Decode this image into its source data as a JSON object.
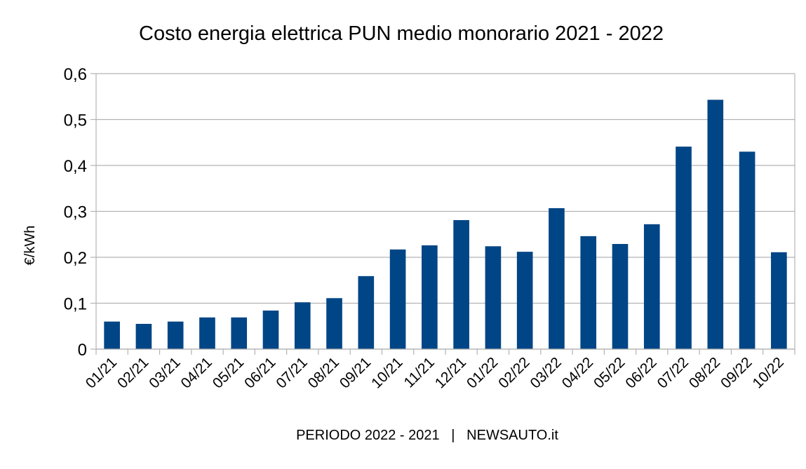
{
  "chart_data": {
    "type": "bar",
    "title": "Costo energia elettrica PUN medio monorario 2021 - 2022",
    "xlabel": "PERIODO 2022 - 2021   |   NEWSAUTO.it",
    "ylabel": "€/kWh",
    "ylim": [
      0,
      0.6
    ],
    "yticks": [
      0,
      0.1,
      0.2,
      0.3,
      0.4,
      0.5,
      0.6
    ],
    "ytick_labels": [
      "0",
      "0,1",
      "0,2",
      "0,3",
      "0,4",
      "0,5",
      "0,6"
    ],
    "grid": true,
    "legend": "none",
    "bar_color": "#004586",
    "categories": [
      "01/21",
      "02/21",
      "03/21",
      "04/21",
      "05/21",
      "06/21",
      "07/21",
      "08/21",
      "09/21",
      "10/21",
      "11/21",
      "12/21",
      "01/22",
      "02/22",
      "03/22",
      "04/22",
      "05/22",
      "06/22",
      "07/22",
      "08/22",
      "09/22",
      "10/22"
    ],
    "values": [
      0.06,
      0.055,
      0.06,
      0.069,
      0.069,
      0.084,
      0.102,
      0.111,
      0.159,
      0.217,
      0.226,
      0.281,
      0.224,
      0.212,
      0.307,
      0.246,
      0.229,
      0.272,
      0.441,
      0.543,
      0.43,
      0.211
    ]
  }
}
